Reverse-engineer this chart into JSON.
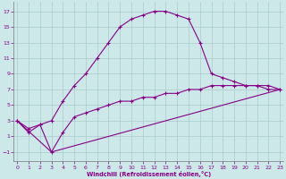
{
  "xlabel": "Windchill (Refroidissement éolien,°C)",
  "background_color": "#cce8e8",
  "grid_color": "#aacccc",
  "line_color": "#880088",
  "x_ticks": [
    0,
    1,
    2,
    3,
    4,
    5,
    6,
    7,
    8,
    9,
    10,
    11,
    12,
    13,
    14,
    15,
    16,
    17,
    18,
    19,
    20,
    21,
    22,
    23
  ],
  "y_ticks": [
    -1,
    1,
    3,
    5,
    7,
    9,
    11,
    13,
    15,
    17
  ],
  "xlim": [
    -0.3,
    23.3
  ],
  "ylim": [
    -2.2,
    18.2
  ],
  "series1_x": [
    0,
    1,
    2,
    3,
    4,
    5,
    6,
    7,
    8,
    9,
    10,
    11,
    12,
    13,
    14,
    15,
    16,
    17,
    18,
    19,
    20,
    21,
    22,
    23
  ],
  "series1_y": [
    3,
    2,
    2.5,
    3,
    5.5,
    7.5,
    9,
    11,
    13,
    15,
    16,
    16.5,
    17,
    17,
    16.5,
    16,
    13,
    9,
    8.5,
    8,
    7.5,
    7.5,
    7,
    7
  ],
  "series2_x": [
    0,
    1,
    2,
    3,
    4,
    5,
    6,
    7,
    8,
    9,
    10,
    11,
    12,
    13,
    14,
    15,
    16,
    17,
    18,
    19,
    20,
    21,
    22,
    23
  ],
  "series2_y": [
    3,
    1.5,
    2.5,
    -1,
    1.5,
    3.5,
    4,
    4.5,
    5,
    5.5,
    5.5,
    6,
    6,
    6.5,
    6.5,
    7,
    7,
    7.5,
    7.5,
    7.5,
    7.5,
    7.5,
    7.5,
    7
  ],
  "series3_x": [
    0,
    3,
    23
  ],
  "series3_y": [
    3,
    -1,
    7
  ]
}
